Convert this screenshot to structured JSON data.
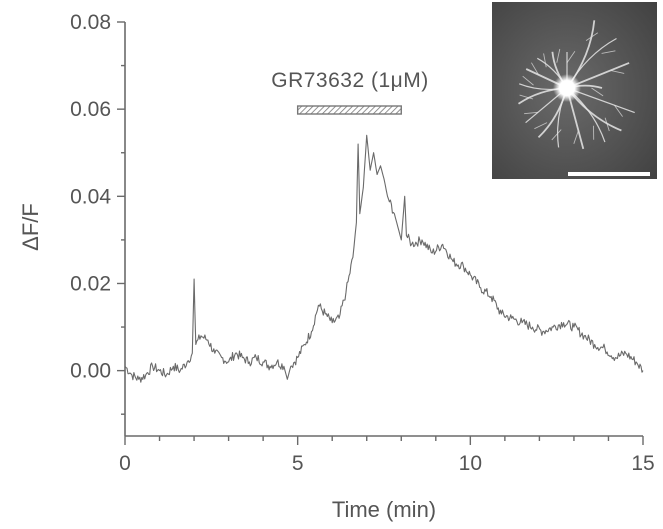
{
  "chart_data": {
    "type": "line",
    "xlabel": "Time (min)",
    "ylabel": "ΔF/F",
    "xlim": [
      0,
      15
    ],
    "ylim": [
      -0.015,
      0.08
    ],
    "x_ticks": [
      0,
      5,
      10,
      15
    ],
    "x_tick_labels": [
      "0",
      "5",
      "10",
      "15"
    ],
    "y_ticks": [
      0.0,
      0.02,
      0.04,
      0.06,
      0.08
    ],
    "y_tick_labels": [
      "0.00",
      "0.02",
      "0.04",
      "0.06",
      "0.08"
    ],
    "grid": false,
    "annotation": {
      "label": "GR73632 (1μM)",
      "x_start": 5.0,
      "x_end": 8.0
    },
    "series": [
      {
        "color": "#6a6a6a",
        "points": [
          [
            0.0,
            0.001
          ],
          [
            0.2,
            -0.001
          ],
          [
            0.4,
            -0.002
          ],
          [
            0.6,
            -0.001
          ],
          [
            0.8,
            0.001
          ],
          [
            1.0,
            0.0
          ],
          [
            1.2,
            -0.001
          ],
          [
            1.4,
            0.001
          ],
          [
            1.6,
            0.0
          ],
          [
            1.8,
            0.002
          ],
          [
            1.95,
            0.004
          ],
          [
            2.0,
            0.021
          ],
          [
            2.05,
            0.006
          ],
          [
            2.2,
            0.008
          ],
          [
            2.4,
            0.007
          ],
          [
            2.6,
            0.004
          ],
          [
            2.8,
            0.003
          ],
          [
            3.0,
            0.002
          ],
          [
            3.2,
            0.004
          ],
          [
            3.4,
            0.003
          ],
          [
            3.6,
            0.002
          ],
          [
            3.8,
            0.003
          ],
          [
            4.0,
            0.002
          ],
          [
            4.2,
            0.001
          ],
          [
            4.4,
            0.002
          ],
          [
            4.6,
            0.001
          ],
          [
            4.7,
            -0.002
          ],
          [
            4.8,
            0.001
          ],
          [
            5.0,
            0.003
          ],
          [
            5.2,
            0.006
          ],
          [
            5.4,
            0.009
          ],
          [
            5.6,
            0.015
          ],
          [
            5.8,
            0.013
          ],
          [
            6.0,
            0.011
          ],
          [
            6.2,
            0.012
          ],
          [
            6.4,
            0.018
          ],
          [
            6.6,
            0.026
          ],
          [
            6.7,
            0.034
          ],
          [
            6.75,
            0.052
          ],
          [
            6.8,
            0.036
          ],
          [
            6.9,
            0.042
          ],
          [
            7.0,
            0.054
          ],
          [
            7.1,
            0.046
          ],
          [
            7.2,
            0.05
          ],
          [
            7.3,
            0.045
          ],
          [
            7.4,
            0.047
          ],
          [
            7.5,
            0.044
          ],
          [
            7.6,
            0.04
          ],
          [
            7.8,
            0.036
          ],
          [
            7.9,
            0.033
          ],
          [
            8.0,
            0.03
          ],
          [
            8.1,
            0.04
          ],
          [
            8.15,
            0.031
          ],
          [
            8.3,
            0.029
          ],
          [
            8.6,
            0.03
          ],
          [
            8.9,
            0.027
          ],
          [
            9.2,
            0.029
          ],
          [
            9.5,
            0.025
          ],
          [
            9.8,
            0.024
          ],
          [
            10.0,
            0.022
          ],
          [
            10.3,
            0.019
          ],
          [
            10.6,
            0.017
          ],
          [
            10.9,
            0.013
          ],
          [
            11.2,
            0.012
          ],
          [
            11.5,
            0.011
          ],
          [
            11.8,
            0.01
          ],
          [
            12.1,
            0.009
          ],
          [
            12.4,
            0.01
          ],
          [
            12.7,
            0.011
          ],
          [
            13.0,
            0.01
          ],
          [
            13.3,
            0.008
          ],
          [
            13.6,
            0.006
          ],
          [
            13.9,
            0.005
          ],
          [
            14.2,
            0.003
          ],
          [
            14.5,
            0.004
          ],
          [
            14.8,
            0.002
          ],
          [
            15.0,
            0.0
          ]
        ]
      }
    ]
  },
  "inset": {
    "colors": {
      "background": "#4a4a4a",
      "cell_body": "#ffffff",
      "processes": "#e6e6e6",
      "scale_bar": "#ffffff"
    },
    "scale_bar_label": ""
  }
}
